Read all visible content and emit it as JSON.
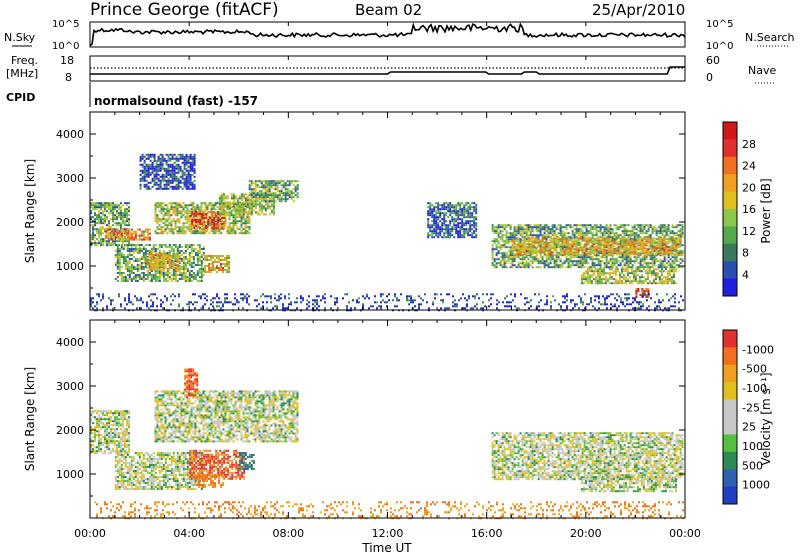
{
  "header": {
    "station": "Prince George (fitACF)",
    "beam": "Beam 02",
    "date": "25/Apr/2010"
  },
  "noise_panel": {
    "left_label": "N.Sky",
    "right_label": "N.Search",
    "left_ticks": [
      "10^5",
      "10^0"
    ],
    "right_ticks": [
      "10^5",
      "10^0"
    ]
  },
  "freq_panel": {
    "left_label_1": "Freq.",
    "left_label_2": "[MHz]",
    "right_label": "Nave",
    "left_ticks": [
      "18",
      "8"
    ],
    "right_ticks": [
      "60",
      "0"
    ],
    "cpid_label": "CPID",
    "cpid_text": "normalsound (fast) -157"
  },
  "time_axis": {
    "title": "Time UT",
    "ticks": [
      "00:00",
      "04:00",
      "08:00",
      "12:00",
      "16:00",
      "20:00",
      "00:00"
    ]
  },
  "chart_data": [
    {
      "type": "heatmap",
      "name": "power",
      "ylabel": "Slant Range [km]",
      "yticks": [
        "1000",
        "2000",
        "3000",
        "4000"
      ],
      "ylim": [
        0,
        4500
      ],
      "xlim_hours": [
        0,
        24
      ],
      "colorbar_label": "Power [dB]",
      "colorbar_ticks": [
        "4",
        "8",
        "12",
        "16",
        "20",
        "24",
        "28"
      ],
      "colorbar_colors": [
        "#1f1fe0",
        "#2b4fb0",
        "#3a7a5a",
        "#56a84e",
        "#8cc64a",
        "#e0c020",
        "#f0a020",
        "#f07020",
        "#e03030",
        "#d01818"
      ],
      "regions": [
        {
          "t0": 0.0,
          "t1": 1.6,
          "r0": 1450,
          "r1": 2450,
          "level": 0.35
        },
        {
          "t0": 0.6,
          "t1": 2.4,
          "r0": 1600,
          "r1": 1850,
          "level": 0.7
        },
        {
          "t0": 1.0,
          "t1": 4.6,
          "r0": 650,
          "r1": 1500,
          "level": 0.35
        },
        {
          "t0": 2.2,
          "t1": 3.6,
          "r0": 900,
          "r1": 1300,
          "level": 0.55
        },
        {
          "t0": 4.6,
          "t1": 5.6,
          "r0": 850,
          "r1": 1250,
          "level": 0.6
        },
        {
          "t0": 2.6,
          "t1": 6.4,
          "r0": 1750,
          "r1": 2450,
          "level": 0.45
        },
        {
          "t0": 4.0,
          "t1": 5.4,
          "r0": 1850,
          "r1": 2250,
          "level": 0.8
        },
        {
          "t0": 5.2,
          "t1": 7.4,
          "r0": 2150,
          "r1": 2650,
          "level": 0.45
        },
        {
          "t0": 6.4,
          "t1": 8.4,
          "r0": 2450,
          "r1": 2950,
          "level": 0.35
        },
        {
          "t0": 2.0,
          "t1": 4.2,
          "r0": 2750,
          "r1": 3550,
          "level": 0.12
        },
        {
          "t0": 13.6,
          "t1": 15.6,
          "r0": 1650,
          "r1": 2450,
          "level": 0.2
        },
        {
          "t0": 16.2,
          "t1": 23.9,
          "r0": 950,
          "r1": 1950,
          "level": 0.35
        },
        {
          "t0": 17.0,
          "t1": 23.8,
          "r0": 1250,
          "r1": 1650,
          "level": 0.6
        },
        {
          "t0": 19.8,
          "t1": 23.6,
          "r0": 600,
          "r1": 950,
          "level": 0.45
        },
        {
          "t0": 22.0,
          "t1": 22.5,
          "r0": 280,
          "r1": 500,
          "level": 0.85
        },
        {
          "t0": 0.0,
          "t1": 23.9,
          "r0": 0,
          "r1": 380,
          "level": 0.1
        }
      ]
    },
    {
      "type": "heatmap",
      "name": "velocity",
      "ylabel": "Slant Range [km]",
      "yticks": [
        "1000",
        "2000",
        "3000",
        "4000"
      ],
      "ylim": [
        0,
        4500
      ],
      "xlim_hours": [
        0,
        24
      ],
      "colorbar_label": "Velocity [m s⁻¹]",
      "colorbar_ticks": [
        "1000",
        "500",
        "100",
        "25",
        "-25",
        "-100",
        "-500",
        "-1000"
      ],
      "colorbar_colors": [
        "#1f3fc0",
        "#3060b0",
        "#2e8a55",
        "#55c040",
        "#c8c8c8",
        "#c8c8c8",
        "#e0c020",
        "#f0a020",
        "#f07020",
        "#e03030"
      ],
      "regions": [
        {
          "t0": 0.0,
          "t1": 1.6,
          "r0": 1450,
          "r1": 2450,
          "v": 0
        },
        {
          "t0": 1.0,
          "t1": 4.6,
          "r0": 650,
          "r1": 1500,
          "v": 0
        },
        {
          "t0": 2.6,
          "t1": 8.4,
          "r0": 1750,
          "r1": 2900,
          "v": 0
        },
        {
          "t0": 4.0,
          "t1": 6.2,
          "r0": 900,
          "r1": 1550,
          "v": -500
        },
        {
          "t0": 4.2,
          "t1": 5.4,
          "r0": 700,
          "r1": 1000,
          "v": -200
        },
        {
          "t0": 6.0,
          "t1": 6.6,
          "r0": 1100,
          "r1": 1500,
          "v": 100
        },
        {
          "t0": 3.8,
          "t1": 4.3,
          "r0": 2750,
          "r1": 3400,
          "v": -500
        },
        {
          "t0": 16.2,
          "t1": 23.9,
          "r0": 900,
          "r1": 1950,
          "v": 0
        },
        {
          "t0": 19.8,
          "t1": 23.6,
          "r0": 600,
          "r1": 950,
          "v": 0
        },
        {
          "t0": 0.0,
          "t1": 23.9,
          "r0": 0,
          "r1": 380,
          "v": -150
        }
      ]
    }
  ]
}
